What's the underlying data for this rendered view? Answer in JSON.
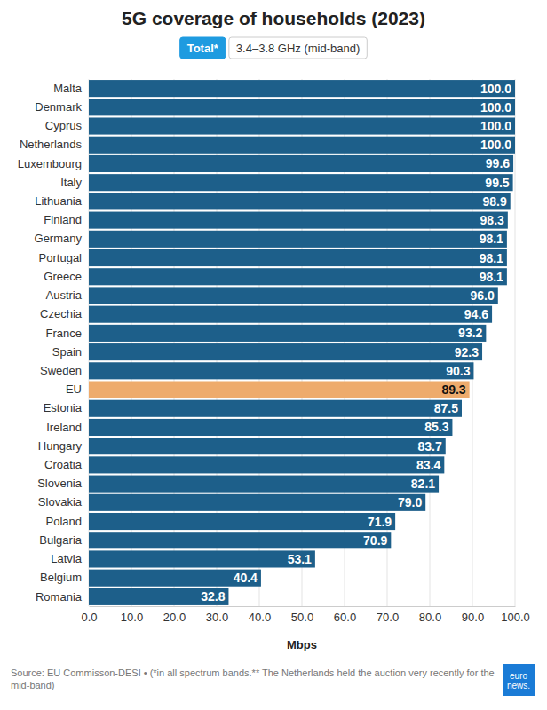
{
  "chart_data": {
    "type": "bar",
    "title": "5G coverage of households (2023)",
    "buttons": [
      "Total*",
      "3.4–3.8 GHz (mid-band)"
    ],
    "orientation": "horizontal",
    "categories": [
      "Malta",
      "Denmark",
      "Cyprus",
      "Netherlands",
      "Luxembourg",
      "Italy",
      "Lithuania",
      "Finland",
      "Germany",
      "Portugal",
      "Greece",
      "Austria",
      "Czechia",
      "France",
      "Spain",
      "Sweden",
      "EU",
      "Estonia",
      "Ireland",
      "Hungary",
      "Croatia",
      "Slovenia",
      "Slovakia",
      "Poland",
      "Bulgaria",
      "Latvia",
      "Belgium",
      "Romania"
    ],
    "values": [
      100.0,
      100.0,
      100.0,
      100.0,
      99.6,
      99.5,
      98.9,
      98.3,
      98.1,
      98.1,
      98.1,
      96.0,
      94.6,
      93.2,
      92.3,
      90.3,
      89.3,
      87.5,
      85.3,
      83.7,
      83.4,
      82.1,
      79.0,
      71.9,
      70.9,
      53.1,
      40.4,
      32.8
    ],
    "value_labels": [
      "100.0",
      "100.0",
      "100.0",
      "100.0",
      "99.6",
      "99.5",
      "98.9",
      "98.3",
      "98.1",
      "98.1",
      "98.1",
      "96.0",
      "94.6",
      "93.2",
      "92.3",
      "90.3",
      "89.3",
      "87.5",
      "85.3",
      "83.7",
      "83.4",
      "82.1",
      "79.0",
      "71.9",
      "70.9",
      "53.1",
      "40.4",
      "32.8"
    ],
    "colors": [
      "#1d5f8a",
      "#1d5f8a",
      "#1d5f8a",
      "#1d5f8a",
      "#1d5f8a",
      "#1d5f8a",
      "#1d5f8a",
      "#1d5f8a",
      "#1d5f8a",
      "#1d5f8a",
      "#1d5f8a",
      "#1d5f8a",
      "#1d5f8a",
      "#1d5f8a",
      "#1d5f8a",
      "#1d5f8a",
      "#eeab6c",
      "#1d5f8a",
      "#1d5f8a",
      "#1d5f8a",
      "#1d5f8a",
      "#1d5f8a",
      "#1d5f8a",
      "#1d5f8a",
      "#1d5f8a",
      "#1d5f8a",
      "#1d5f8a",
      "#1d5f8a"
    ],
    "data_labels": true,
    "xlabel": "Mbps",
    "xlim": [
      0,
      100
    ],
    "xticks": [
      {
        "value": 0,
        "label": "0.0"
      },
      {
        "value": 10,
        "label": "10.0"
      },
      {
        "value": 20,
        "label": "20.0"
      },
      {
        "value": 30,
        "label": "30.0"
      },
      {
        "value": 40,
        "label": "40.0"
      },
      {
        "value": 50,
        "label": "50.0"
      },
      {
        "value": 60,
        "label": "60.0"
      },
      {
        "value": 70,
        "label": "70.0"
      },
      {
        "value": 80,
        "label": "80.0"
      },
      {
        "value": 90,
        "label": "90.0"
      },
      {
        "value": 100,
        "label": "100.0"
      }
    ],
    "grid": true,
    "notes": [
      "Source: EU Commisson-DESI • (*in all spectrum bands.** The Netherlands held the auction very recently for the",
      "mid-band)"
    ],
    "logo": [
      "euro",
      "news."
    ]
  }
}
